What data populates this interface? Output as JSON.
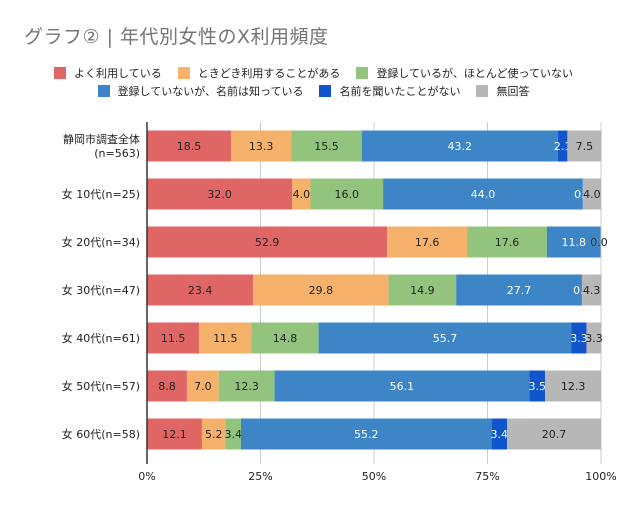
{
  "title": "グラフ② | 年代別女性のX利用頻度",
  "chart_data": {
    "type": "bar",
    "orientation": "horizontal",
    "stacked": "percent",
    "title": "グラフ② | 年代別女性のX利用頻度",
    "xlabel": "",
    "ylabel": "",
    "xlim": [
      0,
      100
    ],
    "x_ticks": [
      "0%",
      "25%",
      "50%",
      "75%",
      "100%"
    ],
    "grid": true,
    "legend_position": "top",
    "categories": [
      [
        "静岡市調査全体",
        "(n=563)"
      ],
      [
        "女 10代(n=25)"
      ],
      [
        "女 20代(n=34)"
      ],
      [
        "女 30代(n=47)"
      ],
      [
        "女 40代(n=61)"
      ],
      [
        "女 50代(n=57)"
      ],
      [
        "女 60代(n=58)"
      ]
    ],
    "series": [
      {
        "name": "よく利用している",
        "color": "#e06666",
        "label_color": "#222222",
        "values": [
          18.5,
          32.0,
          52.9,
          23.4,
          11.5,
          8.8,
          12.1
        ]
      },
      {
        "name": "ときどき利用することがある",
        "color": "#f6b26b",
        "label_color": "#222222",
        "values": [
          13.3,
          4.0,
          17.6,
          29.8,
          11.5,
          7.0,
          5.2
        ]
      },
      {
        "name": "登録しているが、ほとんど使っていない",
        "color": "#93c47d",
        "label_color": "#222222",
        "values": [
          15.5,
          16.0,
          17.6,
          14.9,
          14.8,
          12.3,
          3.4
        ]
      },
      {
        "name": "登録していないが、名前は知っている",
        "color": "#3d85c6",
        "label_color": "#ffffff",
        "values": [
          43.2,
          44.0,
          11.8,
          27.7,
          55.7,
          56.1,
          55.2
        ]
      },
      {
        "name": "名前を聞いたことがない",
        "color": "#1155cc",
        "label_color": "#ffffff",
        "values": [
          2.1,
          0.0,
          0.0,
          0.0,
          3.3,
          3.5,
          3.4
        ]
      },
      {
        "name": "無回答",
        "color": "#b7b7b7",
        "label_color": "#222222",
        "values": [
          7.5,
          4.0,
          0.0,
          4.3,
          3.3,
          12.3,
          20.7
        ]
      }
    ]
  }
}
